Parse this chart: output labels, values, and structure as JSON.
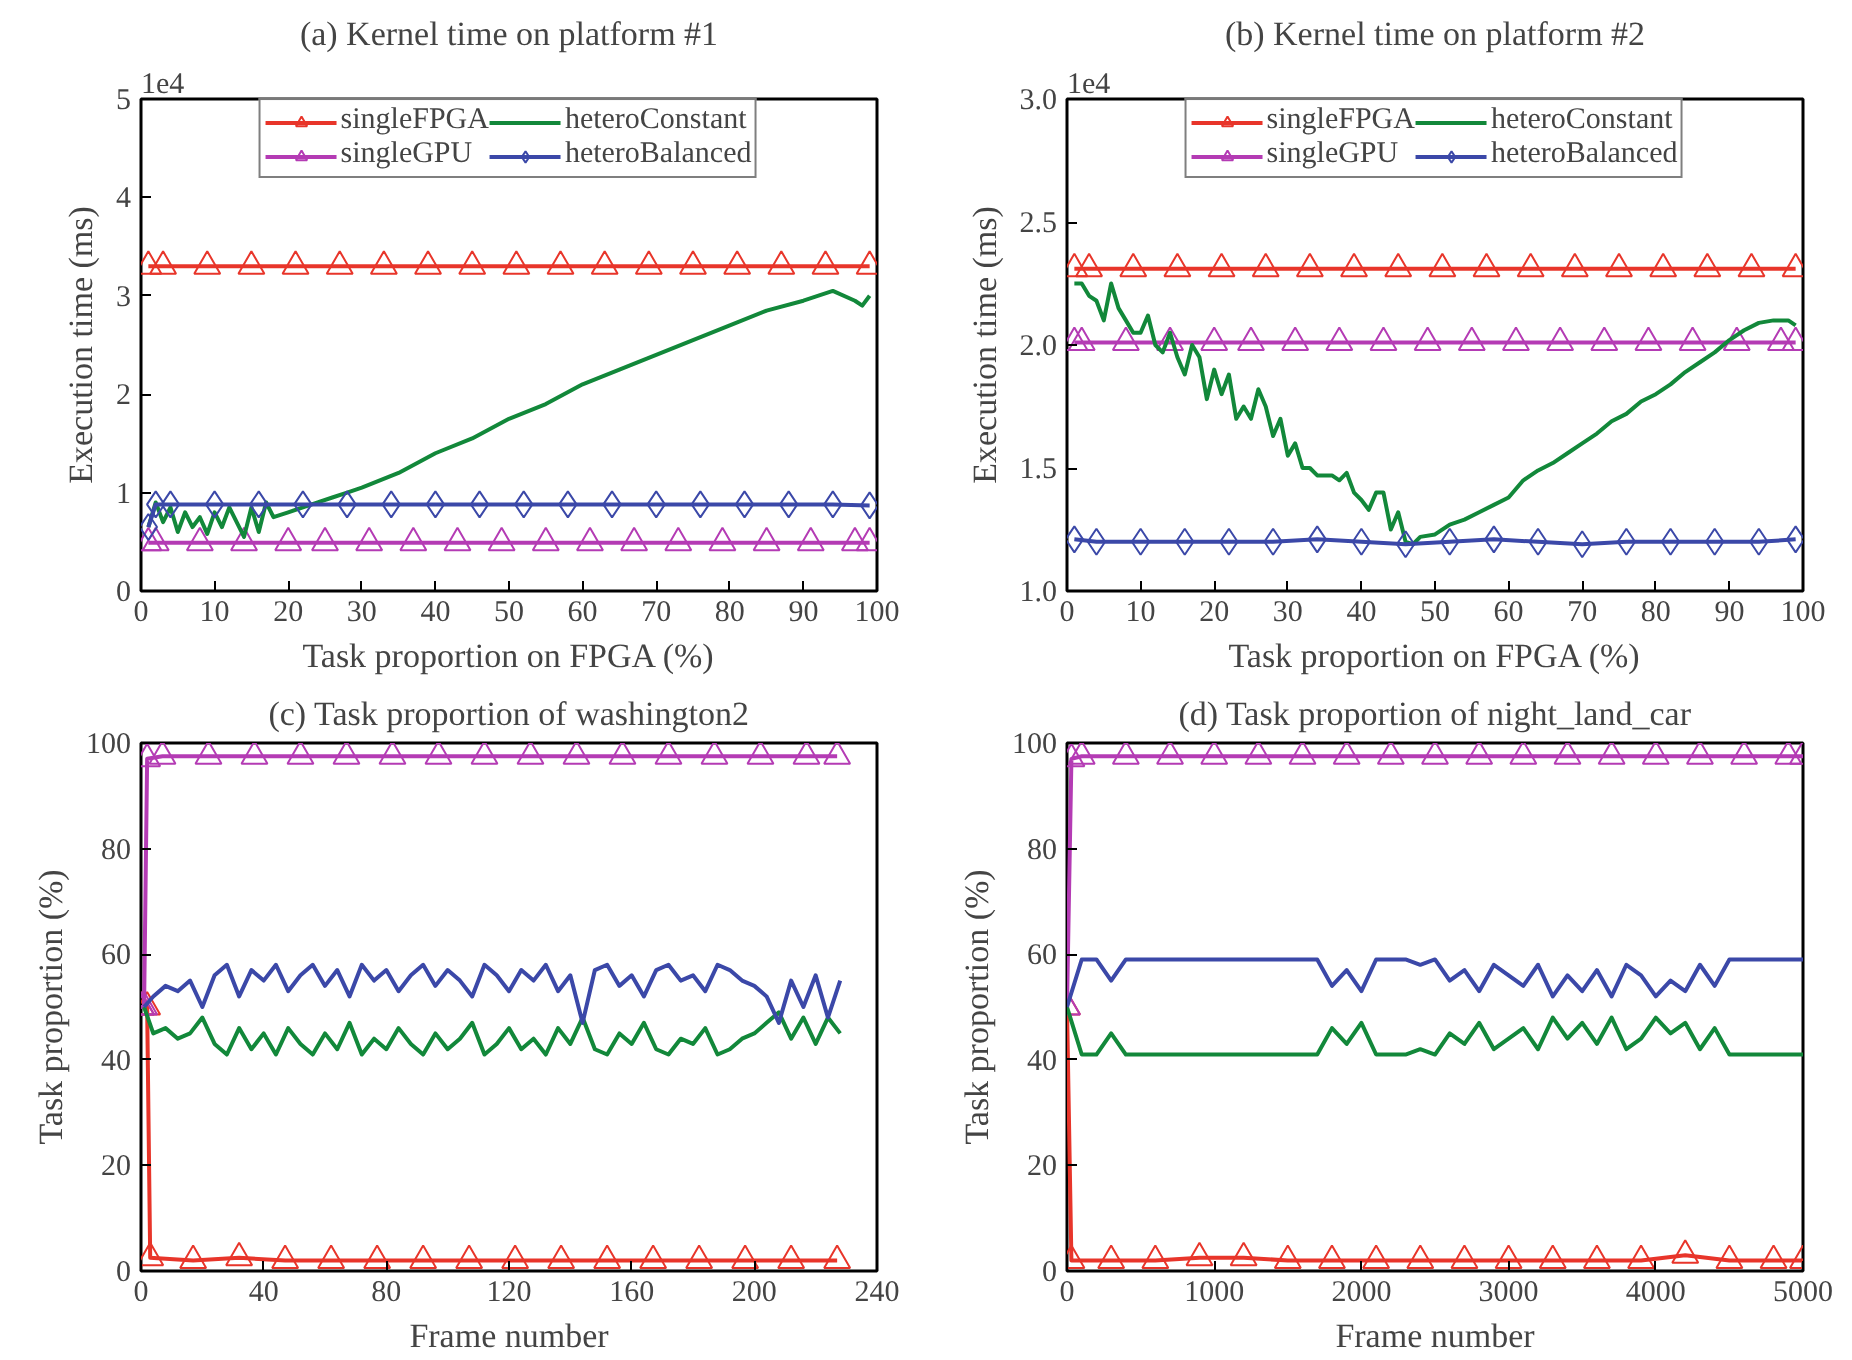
{
  "chart_data": [
    {
      "type": "line",
      "title": "(a) Kernel time on platform #1",
      "xlabel": "Task proportion on FPGA (%)",
      "ylabel": "Execution time (ms)",
      "annotations": [
        "1e4"
      ],
      "xlim": [
        0,
        100
      ],
      "ylim": [
        0,
        5
      ],
      "xticks": [
        0,
        10,
        20,
        30,
        40,
        50,
        60,
        70,
        80,
        90,
        100
      ],
      "yticks": [
        0,
        1,
        2,
        3,
        4,
        5
      ],
      "grid": false,
      "legend": "top",
      "series": [
        {
          "name": "singleFPGA",
          "color": "#e8352a",
          "marker": "triangle",
          "x": [
            1,
            3,
            9,
            15,
            21,
            27,
            33,
            39,
            45,
            51,
            57,
            63,
            69,
            75,
            81,
            87,
            93,
            99
          ],
          "values": [
            3.3,
            3.3,
            3.3,
            3.3,
            3.3,
            3.3,
            3.3,
            3.3,
            3.3,
            3.3,
            3.3,
            3.3,
            3.3,
            3.3,
            3.3,
            3.3,
            3.3,
            3.3
          ]
        },
        {
          "name": "singleGPU",
          "color": "#b43bb4",
          "marker": "triangle",
          "x": [
            1,
            2,
            8,
            14,
            20,
            25,
            31,
            37,
            43,
            49,
            55,
            61,
            67,
            73,
            79,
            85,
            91,
            97,
            99
          ],
          "values": [
            0.49,
            0.49,
            0.49,
            0.49,
            0.49,
            0.49,
            0.49,
            0.49,
            0.49,
            0.49,
            0.49,
            0.49,
            0.49,
            0.49,
            0.49,
            0.49,
            0.49,
            0.49,
            0.49
          ]
        },
        {
          "name": "heteroConstant",
          "color": "#12883a",
          "marker": "none",
          "x": [
            1,
            2,
            3,
            4,
            5,
            6,
            7,
            8,
            9,
            10,
            11,
            12,
            13,
            14,
            15,
            16,
            17,
            18,
            20,
            22,
            24,
            26,
            28,
            30,
            35,
            40,
            45,
            50,
            55,
            60,
            65,
            70,
            75,
            80,
            85,
            90,
            94,
            97,
            98,
            99
          ],
          "values": [
            0.65,
            0.9,
            0.7,
            0.85,
            0.6,
            0.8,
            0.65,
            0.75,
            0.58,
            0.8,
            0.65,
            0.85,
            0.7,
            0.55,
            0.85,
            0.6,
            0.9,
            0.75,
            0.8,
            0.85,
            0.9,
            0.95,
            1.0,
            1.05,
            1.2,
            1.4,
            1.55,
            1.75,
            1.9,
            2.1,
            2.25,
            2.4,
            2.55,
            2.7,
            2.85,
            2.95,
            3.05,
            2.95,
            2.9,
            3.0
          ]
        },
        {
          "name": "heteroBalanced",
          "color": "#3b48a8",
          "marker": "diamond",
          "x": [
            1,
            2,
            4,
            10,
            16,
            22,
            28,
            34,
            40,
            46,
            52,
            58,
            64,
            70,
            76,
            82,
            88,
            94,
            99
          ],
          "values": [
            0.65,
            0.88,
            0.88,
            0.88,
            0.88,
            0.88,
            0.88,
            0.88,
            0.88,
            0.88,
            0.88,
            0.88,
            0.88,
            0.88,
            0.88,
            0.88,
            0.88,
            0.88,
            0.87
          ]
        }
      ]
    },
    {
      "type": "line",
      "title": "(b) Kernel time on platform #2",
      "xlabel": "Task proportion on FPGA (%)",
      "ylabel": "Execution time (ms)",
      "annotations": [
        "1e4"
      ],
      "xlim": [
        0,
        100
      ],
      "ylim": [
        1,
        3
      ],
      "xticks": [
        0,
        10,
        20,
        30,
        40,
        50,
        60,
        70,
        80,
        90,
        100
      ],
      "yticks": [
        {
          "value": 1,
          "label": "1.0"
        },
        1.5,
        {
          "value": 2,
          "label": "2.0"
        },
        2.5,
        {
          "value": 3,
          "label": "3.0"
        }
      ],
      "grid": false,
      "legend": "top",
      "series": [
        {
          "name": "singleFPGA",
          "color": "#e8352a",
          "marker": "triangle",
          "x": [
            1,
            3,
            9,
            15,
            21,
            27,
            33,
            39,
            45,
            51,
            57,
            63,
            69,
            75,
            81,
            87,
            93,
            99
          ],
          "values": [
            2.31,
            2.31,
            2.31,
            2.31,
            2.31,
            2.31,
            2.31,
            2.31,
            2.31,
            2.31,
            2.31,
            2.31,
            2.31,
            2.31,
            2.31,
            2.31,
            2.31,
            2.31
          ]
        },
        {
          "name": "singleGPU",
          "color": "#b43bb4",
          "marker": "triangle",
          "x": [
            1,
            2,
            8,
            14,
            20,
            25,
            31,
            37,
            43,
            49,
            55,
            61,
            67,
            73,
            79,
            85,
            91,
            97,
            99
          ],
          "values": [
            2.01,
            2.01,
            2.01,
            2.01,
            2.01,
            2.01,
            2.01,
            2.01,
            2.01,
            2.01,
            2.01,
            2.01,
            2.01,
            2.01,
            2.01,
            2.01,
            2.01,
            2.01,
            2.01
          ]
        },
        {
          "name": "heteroConstant",
          "color": "#12883a",
          "marker": "none",
          "x": [
            1,
            2,
            3,
            4,
            5,
            6,
            7,
            8,
            9,
            10,
            11,
            12,
            13,
            14,
            15,
            16,
            17,
            18,
            19,
            20,
            21,
            22,
            23,
            24,
            25,
            26,
            27,
            28,
            29,
            30,
            31,
            32,
            33,
            34,
            35,
            36,
            37,
            38,
            39,
            40,
            41,
            42,
            43,
            44,
            45,
            46,
            47,
            48,
            50,
            52,
            54,
            56,
            58,
            60,
            62,
            64,
            66,
            68,
            70,
            72,
            74,
            76,
            78,
            80,
            82,
            84,
            86,
            88,
            90,
            92,
            94,
            96,
            98,
            99
          ],
          "values": [
            2.25,
            2.25,
            2.2,
            2.18,
            2.1,
            2.25,
            2.15,
            2.1,
            2.05,
            2.05,
            2.12,
            2.0,
            1.97,
            2.05,
            1.95,
            1.88,
            2.0,
            1.95,
            1.78,
            1.9,
            1.8,
            1.88,
            1.7,
            1.75,
            1.7,
            1.82,
            1.75,
            1.63,
            1.7,
            1.55,
            1.6,
            1.5,
            1.5,
            1.47,
            1.47,
            1.47,
            1.45,
            1.48,
            1.4,
            1.37,
            1.33,
            1.4,
            1.4,
            1.25,
            1.32,
            1.2,
            1.19,
            1.22,
            1.23,
            1.27,
            1.29,
            1.32,
            1.35,
            1.38,
            1.45,
            1.49,
            1.52,
            1.56,
            1.6,
            1.64,
            1.69,
            1.72,
            1.77,
            1.8,
            1.84,
            1.89,
            1.93,
            1.97,
            2.02,
            2.06,
            2.09,
            2.1,
            2.1,
            2.08
          ]
        },
        {
          "name": "heteroBalanced",
          "color": "#3b48a8",
          "marker": "diamond",
          "x": [
            1,
            4,
            10,
            16,
            22,
            28,
            34,
            40,
            46,
            52,
            58,
            64,
            70,
            76,
            82,
            88,
            94,
            99
          ],
          "values": [
            1.21,
            1.2,
            1.2,
            1.2,
            1.2,
            1.2,
            1.21,
            1.2,
            1.19,
            1.2,
            1.21,
            1.2,
            1.19,
            1.2,
            1.2,
            1.2,
            1.2,
            1.21
          ]
        }
      ]
    },
    {
      "type": "line",
      "title": "(c) Task proportion of washington2",
      "xlabel": "Frame number",
      "ylabel": "Task proportion (%)",
      "xlim": [
        0,
        240
      ],
      "ylim": [
        0,
        100
      ],
      "xticks": [
        0,
        40,
        80,
        120,
        160,
        200,
        240
      ],
      "yticks": [
        0,
        20,
        40,
        60,
        80,
        100
      ],
      "grid": false,
      "legend": false,
      "series": [
        {
          "color": "#e8352a",
          "marker": "triangle",
          "x": [
            0,
            2,
            3,
            17,
            32,
            47,
            62,
            77,
            92,
            107,
            122,
            137,
            152,
            167,
            182,
            197,
            212,
            227
          ],
          "values": [
            50,
            50,
            2.5,
            2,
            2.5,
            2,
            2,
            2,
            2,
            2,
            2,
            2,
            2,
            2,
            2,
            2,
            2,
            2
          ]
        },
        {
          "color": "#b43bb4",
          "marker": "triangle",
          "x": [
            0,
            1,
            2,
            7,
            22,
            37,
            52,
            67,
            82,
            97,
            112,
            127,
            142,
            157,
            172,
            187,
            202,
            217,
            227
          ],
          "values": [
            50,
            50,
            97,
            97.5,
            97.5,
            97.5,
            97.5,
            97.5,
            97.5,
            97.5,
            97.5,
            97.5,
            97.5,
            97.5,
            97.5,
            97.5,
            97.5,
            97.5,
            97.5
          ]
        },
        {
          "color": "#12883a",
          "marker": "none",
          "x": [
            1,
            4,
            8,
            12,
            16,
            20,
            24,
            28,
            32,
            36,
            40,
            44,
            48,
            52,
            56,
            60,
            64,
            68,
            72,
            76,
            80,
            84,
            88,
            92,
            96,
            100,
            104,
            108,
            112,
            116,
            120,
            124,
            128,
            132,
            136,
            140,
            144,
            148,
            152,
            156,
            160,
            164,
            168,
            172,
            176,
            180,
            184,
            188,
            192,
            196,
            200,
            204,
            208,
            212,
            216,
            220,
            224,
            228
          ],
          "values": [
            50,
            45,
            46,
            44,
            45,
            48,
            43,
            41,
            46,
            42,
            45,
            41,
            46,
            43,
            41,
            45,
            42,
            47,
            41,
            44,
            42,
            46,
            43,
            41,
            45,
            42,
            44,
            47,
            41,
            43,
            46,
            42,
            44,
            41,
            46,
            43,
            48,
            42,
            41,
            45,
            43,
            47,
            42,
            41,
            44,
            43,
            46,
            41,
            42,
            44,
            45,
            47,
            49,
            44,
            48,
            43,
            48,
            45
          ]
        },
        {
          "color": "#3b48a8",
          "marker": "none",
          "x": [
            1,
            4,
            8,
            12,
            16,
            20,
            24,
            28,
            32,
            36,
            40,
            44,
            48,
            52,
            56,
            60,
            64,
            68,
            72,
            76,
            80,
            84,
            88,
            92,
            96,
            100,
            104,
            108,
            112,
            116,
            120,
            124,
            128,
            132,
            136,
            140,
            144,
            148,
            152,
            156,
            160,
            164,
            168,
            172,
            176,
            180,
            184,
            188,
            192,
            196,
            200,
            204,
            208,
            212,
            216,
            220,
            224,
            228
          ],
          "values": [
            50,
            52,
            54,
            53,
            55,
            50,
            56,
            58,
            52,
            57,
            55,
            58,
            53,
            56,
            58,
            54,
            57,
            52,
            58,
            55,
            57,
            53,
            56,
            58,
            54,
            57,
            55,
            52,
            58,
            56,
            53,
            57,
            55,
            58,
            53,
            56,
            47,
            57,
            58,
            54,
            56,
            52,
            57,
            58,
            55,
            56,
            53,
            58,
            57,
            55,
            54,
            52,
            47,
            55,
            50,
            56,
            48,
            55
          ]
        }
      ]
    },
    {
      "type": "line",
      "title": "(d) Task proportion of night_land_car",
      "xlabel": "Frame number",
      "ylabel": "Task proportion (%)",
      "xlim": [
        0,
        5000
      ],
      "ylim": [
        0,
        100
      ],
      "xticks": [
        0,
        1000,
        2000,
        3000,
        4000,
        5000
      ],
      "yticks": [
        0,
        20,
        40,
        60,
        80,
        100
      ],
      "grid": false,
      "legend": false,
      "series": [
        {
          "color": "#e8352a",
          "marker": "triangle",
          "x": [
            0,
            30,
            300,
            600,
            900,
            1200,
            1500,
            1800,
            2100,
            2400,
            2700,
            3000,
            3300,
            3600,
            3900,
            4200,
            4500,
            4800,
            5000
          ],
          "values": [
            50,
            2,
            2,
            2,
            2.5,
            2.5,
            2,
            2,
            2,
            2,
            2,
            2,
            2,
            2,
            2,
            3,
            2,
            2,
            2
          ]
        },
        {
          "color": "#b43bb4",
          "marker": "triangle",
          "x": [
            0,
            30,
            100,
            400,
            700,
            1000,
            1300,
            1600,
            1900,
            2200,
            2500,
            2800,
            3100,
            3400,
            3700,
            4000,
            4300,
            4600,
            4900,
            5000
          ],
          "values": [
            50,
            97,
            97.5,
            97.5,
            97.5,
            97.5,
            97.5,
            97.5,
            97.5,
            97.5,
            97.5,
            97.5,
            97.5,
            97.5,
            97.5,
            97.5,
            97.5,
            97.5,
            97.5,
            97.5
          ]
        },
        {
          "color": "#12883a",
          "marker": "none",
          "x": [
            0,
            100,
            200,
            300,
            400,
            500,
            600,
            700,
            800,
            900,
            1000,
            1100,
            1200,
            1300,
            1400,
            1500,
            1600,
            1700,
            1800,
            1900,
            2000,
            2100,
            2200,
            2300,
            2400,
            2500,
            2600,
            2700,
            2800,
            2900,
            3000,
            3100,
            3200,
            3300,
            3400,
            3500,
            3600,
            3700,
            3800,
            3900,
            4000,
            4100,
            4200,
            4300,
            4400,
            4500,
            4600,
            4700,
            4800,
            4900,
            5000
          ],
          "values": [
            50,
            41,
            41,
            45,
            41,
            41,
            41,
            41,
            41,
            41,
            41,
            41,
            41,
            41,
            41,
            41,
            41,
            41,
            46,
            43,
            47,
            41,
            41,
            41,
            42,
            41,
            45,
            43,
            47,
            42,
            44,
            46,
            42,
            48,
            44,
            47,
            43,
            48,
            42,
            44,
            48,
            45,
            47,
            42,
            46,
            41,
            41,
            41,
            41,
            41,
            41
          ]
        },
        {
          "color": "#3b48a8",
          "marker": "none",
          "x": [
            0,
            100,
            200,
            300,
            400,
            500,
            600,
            700,
            800,
            900,
            1000,
            1100,
            1200,
            1300,
            1400,
            1500,
            1600,
            1700,
            1800,
            1900,
            2000,
            2100,
            2200,
            2300,
            2400,
            2500,
            2600,
            2700,
            2800,
            2900,
            3000,
            3100,
            3200,
            3300,
            3400,
            3500,
            3600,
            3700,
            3800,
            3900,
            4000,
            4100,
            4200,
            4300,
            4400,
            4500,
            4600,
            4700,
            4800,
            4900,
            5000
          ],
          "values": [
            50,
            59,
            59,
            55,
            59,
            59,
            59,
            59,
            59,
            59,
            59,
            59,
            59,
            59,
            59,
            59,
            59,
            59,
            54,
            57,
            53,
            59,
            59,
            59,
            58,
            59,
            55,
            57,
            53,
            58,
            56,
            54,
            58,
            52,
            56,
            53,
            57,
            52,
            58,
            56,
            52,
            55,
            53,
            58,
            54,
            59,
            59,
            59,
            59,
            59,
            59
          ]
        }
      ]
    }
  ]
}
